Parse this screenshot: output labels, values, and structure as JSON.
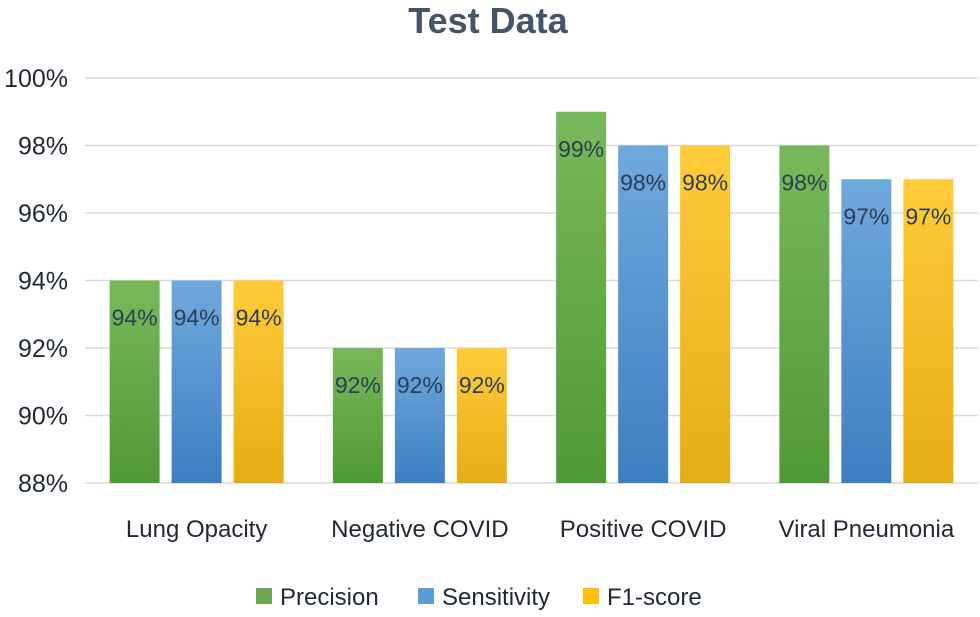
{
  "chart_data": {
    "type": "bar",
    "title": "Test Data",
    "categories": [
      "Lung Opacity",
      "Negative COVID",
      "Positive COVID",
      "Viral Pneumonia"
    ],
    "series": [
      {
        "name": "Precision",
        "color": "#6aa84f",
        "values": [
          94,
          92,
          99,
          98
        ],
        "labels": [
          "94%",
          "92%",
          "99%",
          "98%"
        ]
      },
      {
        "name": "Sensitivity",
        "color": "#5b9bd5",
        "values": [
          94,
          92,
          98,
          97
        ],
        "labels": [
          "94%",
          "92%",
          "98%",
          "97%"
        ]
      },
      {
        "name": "F1-score",
        "color": "#ffc000",
        "values": [
          94,
          92,
          98,
          97
        ],
        "labels": [
          "94%",
          "92%",
          "98%",
          "97%"
        ]
      }
    ],
    "ylim": [
      88,
      100
    ],
    "yticks": [
      88,
      90,
      92,
      94,
      96,
      98,
      100
    ],
    "ytick_labels": [
      "88%",
      "90%",
      "92%",
      "94%",
      "96%",
      "98%",
      "100%"
    ],
    "xlabel": "",
    "ylabel": "",
    "grid": true,
    "legend_position": "bottom"
  }
}
